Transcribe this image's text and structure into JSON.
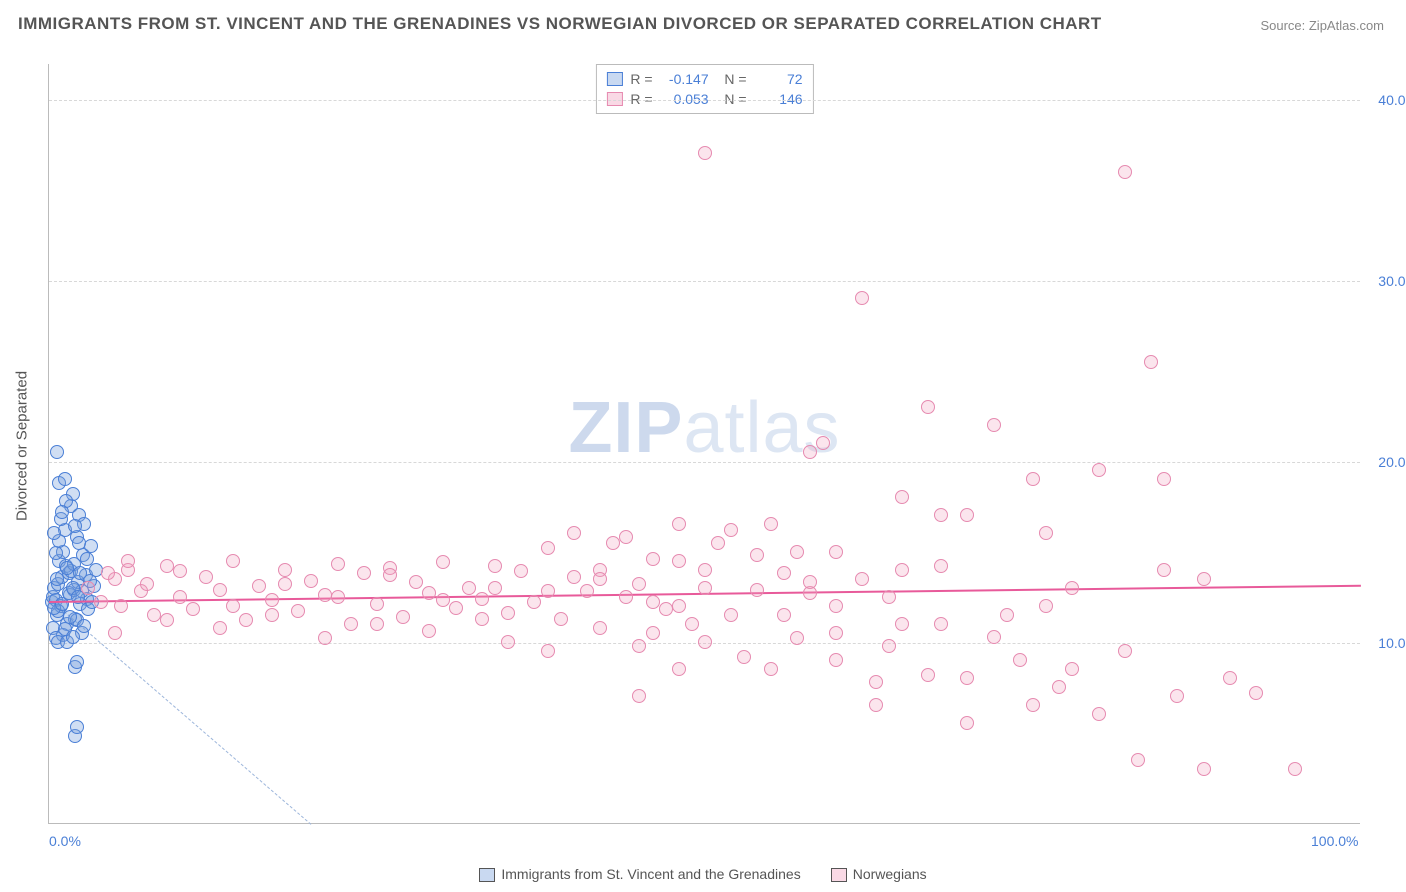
{
  "title": "IMMIGRANTS FROM ST. VINCENT AND THE GRENADINES VS NORWEGIAN DIVORCED OR SEPARATED CORRELATION CHART",
  "source": "Source: ZipAtlas.com",
  "ylabel": "Divorced or Separated",
  "watermark_zip": "ZIP",
  "watermark_atlas": "atlas",
  "chart": {
    "type": "scatter",
    "xlim": [
      0,
      100
    ],
    "ylim": [
      0,
      42
    ],
    "xticks": [
      {
        "val": 0,
        "label": "0.0%"
      },
      {
        "val": 100,
        "label": "100.0%"
      }
    ],
    "yticks": [
      {
        "val": 10,
        "label": "10.0%"
      },
      {
        "val": 20,
        "label": "20.0%"
      },
      {
        "val": 30,
        "label": "30.0%"
      },
      {
        "val": 40,
        "label": "40.0%"
      }
    ],
    "series": [
      {
        "name": "Immigrants from St. Vincent and the Grenadines",
        "color_fill": "rgba(120,160,220,0.35)",
        "color_stroke": "#4a7fd6",
        "class": "blue",
        "R": "-0.147",
        "N": "72",
        "trend": {
          "x1": 0,
          "y1": 12.5,
          "x2": 20,
          "y2": 0
        },
        "points": [
          [
            0.2,
            12.2
          ],
          [
            0.3,
            12.5
          ],
          [
            0.4,
            13.0
          ],
          [
            0.5,
            12.3
          ],
          [
            0.6,
            11.5
          ],
          [
            0.7,
            13.2
          ],
          [
            0.8,
            14.5
          ],
          [
            0.9,
            12.0
          ],
          [
            1.0,
            13.6
          ],
          [
            1.1,
            15.0
          ],
          [
            1.2,
            16.2
          ],
          [
            1.3,
            14.2
          ],
          [
            1.4,
            11.0
          ],
          [
            1.5,
            13.8
          ],
          [
            1.6,
            12.6
          ],
          [
            1.7,
            17.5
          ],
          [
            1.8,
            18.2
          ],
          [
            1.9,
            12.9
          ],
          [
            2.0,
            11.3
          ],
          [
            2.1,
            15.8
          ],
          [
            2.2,
            13.3
          ],
          [
            2.3,
            17.0
          ],
          [
            2.4,
            12.1
          ],
          [
            2.5,
            10.5
          ],
          [
            2.6,
            14.8
          ],
          [
            2.7,
            16.5
          ],
          [
            2.8,
            13.7
          ],
          [
            2.9,
            12.4
          ],
          [
            3.0,
            11.8
          ],
          [
            3.2,
            15.3
          ],
          [
            3.4,
            13.1
          ],
          [
            3.6,
            14.0
          ],
          [
            0.3,
            10.8
          ],
          [
            0.5,
            14.9
          ],
          [
            0.7,
            11.7
          ],
          [
            0.9,
            16.8
          ],
          [
            1.1,
            10.4
          ],
          [
            1.3,
            17.8
          ],
          [
            1.5,
            12.7
          ],
          [
            1.7,
            13.9
          ],
          [
            1.9,
            14.3
          ],
          [
            2.1,
            11.2
          ],
          [
            2.3,
            15.5
          ],
          [
            2.5,
            12.8
          ],
          [
            2.7,
            10.9
          ],
          [
            2.9,
            14.6
          ],
          [
            3.1,
            13.4
          ],
          [
            3.3,
            12.2
          ],
          [
            0.4,
            11.9
          ],
          [
            0.6,
            13.5
          ],
          [
            0.8,
            15.6
          ],
          [
            1.0,
            12.1
          ],
          [
            1.2,
            10.7
          ],
          [
            1.4,
            14.1
          ],
          [
            1.6,
            11.4
          ],
          [
            1.8,
            13.0
          ],
          [
            0.6,
            20.5
          ],
          [
            0.8,
            18.8
          ],
          [
            1.0,
            17.2
          ],
          [
            1.2,
            19.0
          ],
          [
            0.4,
            16.0
          ],
          [
            2.0,
            16.4
          ],
          [
            2.2,
            12.5
          ],
          [
            2.4,
            13.8
          ],
          [
            2.0,
            8.6
          ],
          [
            2.1,
            8.9
          ],
          [
            2.0,
            4.8
          ],
          [
            2.1,
            5.3
          ],
          [
            0.5,
            10.2
          ],
          [
            0.7,
            10.0
          ],
          [
            1.4,
            10.0
          ],
          [
            1.8,
            10.3
          ]
        ]
      },
      {
        "name": "Norwegians",
        "color_fill": "rgba(240,160,190,0.28)",
        "color_stroke": "#e68ab0",
        "class": "pink",
        "R": "0.053",
        "N": "146",
        "trend": {
          "x1": 0,
          "y1": 12.3,
          "x2": 100,
          "y2": 13.2
        },
        "points": [
          [
            3,
            13.0
          ],
          [
            4,
            12.2
          ],
          [
            5,
            13.5
          ],
          [
            6,
            14.0
          ],
          [
            7,
            12.8
          ],
          [
            8,
            11.5
          ],
          [
            4.5,
            13.8
          ],
          [
            5.5,
            12.0
          ],
          [
            7.5,
            13.2
          ],
          [
            9,
            14.2
          ],
          [
            10,
            12.5
          ],
          [
            11,
            11.8
          ],
          [
            12,
            13.6
          ],
          [
            13,
            12.9
          ],
          [
            14,
            14.5
          ],
          [
            15,
            11.2
          ],
          [
            16,
            13.1
          ],
          [
            17,
            12.3
          ],
          [
            18,
            14.0
          ],
          [
            19,
            11.7
          ],
          [
            20,
            13.4
          ],
          [
            21,
            12.6
          ],
          [
            22,
            14.3
          ],
          [
            23,
            11.0
          ],
          [
            24,
            13.8
          ],
          [
            25,
            12.1
          ],
          [
            26,
            14.1
          ],
          [
            27,
            11.4
          ],
          [
            28,
            13.3
          ],
          [
            29,
            12.7
          ],
          [
            30,
            14.4
          ],
          [
            31,
            11.9
          ],
          [
            32,
            13.0
          ],
          [
            33,
            12.4
          ],
          [
            34,
            14.2
          ],
          [
            35,
            11.6
          ],
          [
            36,
            13.9
          ],
          [
            37,
            12.2
          ],
          [
            38,
            15.2
          ],
          [
            39,
            11.3
          ],
          [
            40,
            13.6
          ],
          [
            41,
            12.8
          ],
          [
            42,
            14.0
          ],
          [
            43,
            15.5
          ],
          [
            44,
            12.5
          ],
          [
            45,
            13.2
          ],
          [
            46,
            14.6
          ],
          [
            47,
            11.8
          ],
          [
            35,
            10.0
          ],
          [
            38,
            9.5
          ],
          [
            42,
            10.8
          ],
          [
            45,
            9.8
          ],
          [
            48,
            12.0
          ],
          [
            50,
            13.0
          ],
          [
            52,
            11.5
          ],
          [
            54,
            14.8
          ],
          [
            55,
            8.5
          ],
          [
            57,
            10.2
          ],
          [
            58,
            12.7
          ],
          [
            60,
            9.0
          ],
          [
            62,
            13.5
          ],
          [
            63,
            7.8
          ],
          [
            65,
            11.0
          ],
          [
            67,
            8.2
          ],
          [
            50,
            37.0
          ],
          [
            55,
            16.5
          ],
          [
            57,
            15.0
          ],
          [
            58,
            20.5
          ],
          [
            59,
            21.0
          ],
          [
            60,
            12.0
          ],
          [
            62,
            29.0
          ],
          [
            63,
            6.5
          ],
          [
            65,
            14.0
          ],
          [
            67,
            23.0
          ],
          [
            68,
            17.0
          ],
          [
            70,
            5.5
          ],
          [
            70,
            8.0
          ],
          [
            72,
            22.0
          ],
          [
            73,
            11.5
          ],
          [
            74,
            9.0
          ],
          [
            75,
            19.0
          ],
          [
            76,
            16.0
          ],
          [
            77,
            7.5
          ],
          [
            78,
            13.0
          ],
          [
            80,
            6.0
          ],
          [
            80,
            19.5
          ],
          [
            82,
            9.5
          ],
          [
            83,
            3.5
          ],
          [
            84,
            25.5
          ],
          [
            85,
            14.0
          ],
          [
            86,
            7.0
          ],
          [
            88,
            3.0
          ],
          [
            82,
            36.0
          ],
          [
            90,
            8.0
          ],
          [
            92,
            7.2
          ],
          [
            95,
            3.0
          ],
          [
            40,
            16.0
          ],
          [
            44,
            15.8
          ],
          [
            48,
            14.5
          ],
          [
            52,
            16.2
          ],
          [
            56,
            13.8
          ],
          [
            60,
            15.0
          ],
          [
            64,
            12.5
          ],
          [
            68,
            14.2
          ],
          [
            5,
            10.5
          ],
          [
            9,
            11.2
          ],
          [
            13,
            10.8
          ],
          [
            17,
            11.5
          ],
          [
            21,
            10.2
          ],
          [
            25,
            11.0
          ],
          [
            29,
            10.6
          ],
          [
            33,
            11.3
          ],
          [
            6,
            14.5
          ],
          [
            10,
            13.9
          ],
          [
            14,
            12.0
          ],
          [
            18,
            13.2
          ],
          [
            22,
            12.5
          ],
          [
            26,
            13.7
          ],
          [
            30,
            12.3
          ],
          [
            34,
            13.0
          ],
          [
            38,
            12.8
          ],
          [
            42,
            13.5
          ],
          [
            46,
            12.2
          ],
          [
            50,
            14.0
          ],
          [
            54,
            12.9
          ],
          [
            58,
            13.3
          ],
          [
            45,
            7.0
          ],
          [
            48,
            8.5
          ],
          [
            50,
            10.0
          ],
          [
            53,
            9.2
          ],
          [
            56,
            11.5
          ],
          [
            60,
            10.5
          ],
          [
            64,
            9.8
          ],
          [
            68,
            11.0
          ],
          [
            72,
            10.3
          ],
          [
            76,
            12.0
          ],
          [
            46,
            10.5
          ],
          [
            49,
            11.0
          ],
          [
            65,
            18.0
          ],
          [
            70,
            17.0
          ],
          [
            75,
            6.5
          ],
          [
            78,
            8.5
          ],
          [
            85,
            19.0
          ],
          [
            88,
            13.5
          ],
          [
            48,
            16.5
          ],
          [
            51,
            15.5
          ]
        ]
      }
    ]
  },
  "legend": {
    "s1": "Immigrants from St. Vincent and the Grenadines",
    "s2": "Norwegians"
  }
}
